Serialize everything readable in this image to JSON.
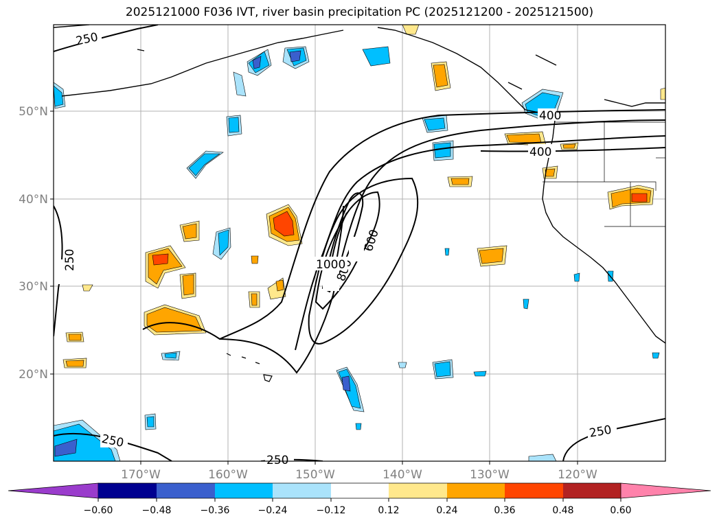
{
  "title": "2025121000 F036 IVT, river basin precipitation PC (2025121200 - 2025121500)",
  "map": {
    "lon_ticks": [
      "170°W",
      "160°W",
      "150°W",
      "140°W",
      "130°W",
      "120°W"
    ],
    "lat_ticks": [
      "50°N",
      "40°N",
      "30°N",
      "20°N"
    ],
    "grid": true,
    "region": "North-east Pacific Ocean, Hawaii to US West Coast",
    "ivt_contour_labels": [
      "250",
      "250",
      "250",
      "250",
      "250",
      "400",
      "400",
      "600",
      "800",
      "1000"
    ]
  },
  "colorbar": {
    "tick_labels": [
      "−0.60",
      "−0.48",
      "−0.36",
      "−0.24",
      "−0.12",
      "0.12",
      "0.24",
      "0.36",
      "0.48",
      "0.60"
    ],
    "colors": [
      "#9a3ccc",
      "#000090",
      "#3a5fcd",
      "#00bfff",
      "#aae3fb",
      "#ffffff",
      "#ffe88c",
      "#ffa500",
      "#ff4500",
      "#b22222",
      "#ff82ab"
    ],
    "extend": "both"
  },
  "colors": {
    "grid": "#b0b0b0",
    "contour": "#000000",
    "tick_label": "#808080"
  }
}
